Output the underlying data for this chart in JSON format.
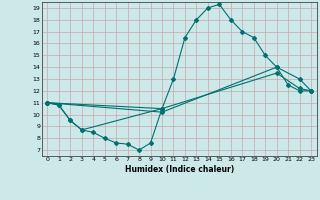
{
  "title": "",
  "xlabel": "Humidex (Indice chaleur)",
  "bg_color": "#cce8e8",
  "grid_color": "#c8a8a8",
  "line_color": "#007070",
  "xlim": [
    -0.5,
    23.5
  ],
  "ylim": [
    6.5,
    19.5
  ],
  "xticks": [
    0,
    1,
    2,
    3,
    4,
    5,
    6,
    7,
    8,
    9,
    10,
    11,
    12,
    13,
    14,
    15,
    16,
    17,
    18,
    19,
    20,
    21,
    22,
    23
  ],
  "yticks": [
    7,
    8,
    9,
    10,
    11,
    12,
    13,
    14,
    15,
    16,
    17,
    18,
    19
  ],
  "line1_x": [
    0,
    1,
    2,
    3,
    4,
    5,
    6,
    7,
    8,
    9,
    10
  ],
  "line1_y": [
    11.0,
    10.8,
    9.5,
    8.7,
    8.5,
    8.0,
    7.6,
    7.5,
    7.0,
    7.6,
    10.5
  ],
  "line2_x": [
    0,
    1,
    2,
    3,
    10,
    11,
    12,
    13,
    14,
    15,
    16,
    17,
    18,
    19,
    20,
    21,
    22,
    23
  ],
  "line2_y": [
    11.0,
    10.8,
    9.5,
    8.7,
    10.5,
    13.0,
    16.5,
    18.0,
    19.0,
    19.3,
    18.0,
    17.0,
    16.5,
    15.0,
    14.0,
    12.5,
    12.0,
    12.0
  ],
  "line3_x": [
    0,
    10,
    20,
    22,
    23
  ],
  "line3_y": [
    11.0,
    10.2,
    14.0,
    13.0,
    12.0
  ],
  "line4_x": [
    0,
    10,
    20,
    22,
    23
  ],
  "line4_y": [
    11.0,
    10.5,
    13.5,
    12.2,
    12.0
  ]
}
